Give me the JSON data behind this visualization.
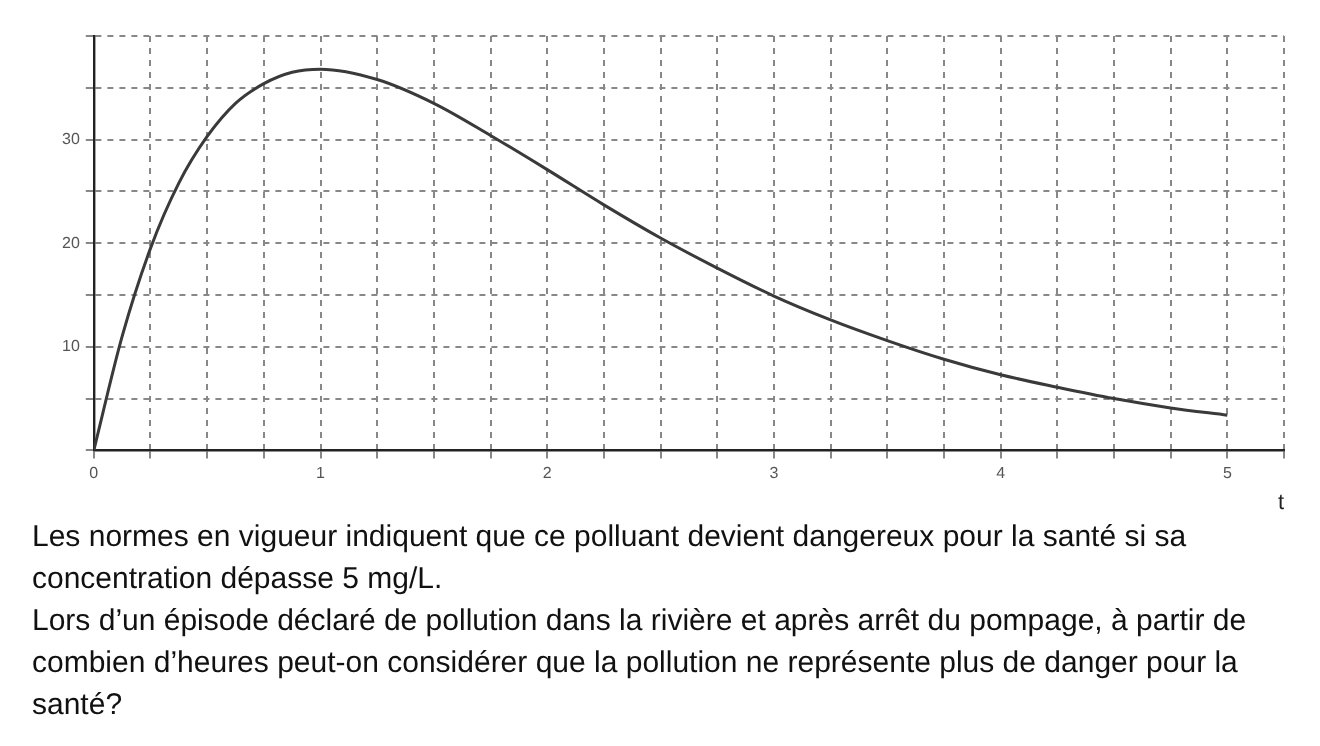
{
  "chart_data": {
    "type": "line",
    "xlabel": "t",
    "x": [
      0,
      0.125,
      0.25,
      0.375,
      0.5,
      0.625,
      0.75,
      0.875,
      1,
      1.25,
      1.5,
      1.75,
      2,
      2.25,
      2.5,
      2.75,
      3,
      3.25,
      3.5,
      3.75,
      4,
      4.25,
      4.5,
      4.75,
      5
    ],
    "series": [
      {
        "color": "#3a3a3a",
        "values": [
          0,
          11.0,
          19.5,
          25.8,
          30.3,
          33.5,
          35.4,
          36.5,
          36.8,
          35.8,
          33.5,
          30.4,
          27.1,
          23.7,
          20.5,
          17.6,
          14.9,
          12.6,
          10.6,
          8.8,
          7.3,
          6.1,
          5.0,
          4.1,
          3.4
        ]
      }
    ],
    "xlim": [
      0,
      5.25
    ],
    "ylim": [
      0,
      40
    ],
    "xticks": [
      0,
      {
        "value": 0.25,
        "label": null
      },
      {
        "value": 0.5,
        "label": null
      },
      {
        "value": 0.75,
        "label": null
      },
      1,
      {
        "value": 1.25,
        "label": null
      },
      {
        "value": 1.5,
        "label": null
      },
      {
        "value": 1.75,
        "label": null
      },
      2,
      {
        "value": 2.25,
        "label": null
      },
      {
        "value": 2.5,
        "label": null
      },
      {
        "value": 2.75,
        "label": null
      },
      3,
      {
        "value": 3.25,
        "label": null
      },
      {
        "value": 3.5,
        "label": null
      },
      {
        "value": 3.75,
        "label": null
      },
      4,
      {
        "value": 4.25,
        "label": null
      },
      {
        "value": 4.5,
        "label": null
      },
      {
        "value": 4.75,
        "label": null
      },
      5,
      {
        "value": 5.25,
        "label": null
      }
    ],
    "yticks": [
      {
        "value": 0,
        "label": null
      },
      {
        "value": 5,
        "label": null
      },
      10,
      {
        "value": 15,
        "label": null
      },
      20,
      {
        "value": 25,
        "label": null
      },
      30,
      {
        "value": 35,
        "label": null
      },
      {
        "value": 40,
        "label": null
      }
    ],
    "grid": true,
    "legend": false,
    "marker": "none",
    "line_style": "solid",
    "annotations": [
      "Les normes en vigueur indiquent que ce polluant devient dangereux pour la santé si sa concentration dépasse 5 mg/L.",
      "Lors d’un épisode déclaré de pollution dans la rivière et après arrêt du pompage,  à partir de combien d’heures peut-on considérer que la pollution ne représente plus de danger pour la santé?"
    ]
  }
}
